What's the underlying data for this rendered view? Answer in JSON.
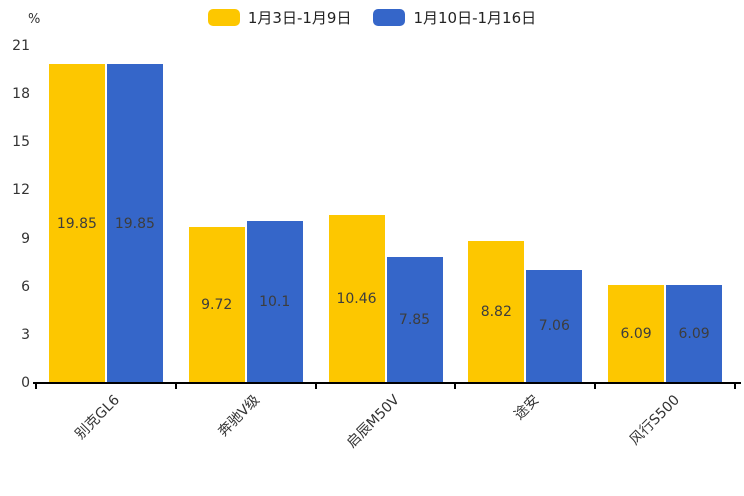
{
  "chart_data": {
    "type": "bar",
    "title": "",
    "xlabel": "",
    "ylabel": "%",
    "categories": [
      "别克GL6",
      "奔驰V级",
      "启辰M50V",
      "途安",
      "风行S500"
    ],
    "series": [
      {
        "name": "1月3日-1月9日",
        "color": "#FDC700",
        "values": [
          19.85,
          9.72,
          10.46,
          8.82,
          6.09
        ]
      },
      {
        "name": "1月10日-1月16日",
        "color": "#3566C9",
        "values": [
          19.85,
          10.1,
          7.85,
          7.06,
          6.09
        ]
      }
    ],
    "ylim": [
      0,
      21
    ],
    "yticks": [
      0,
      3,
      6,
      9,
      12,
      15,
      18,
      21
    ],
    "grid": false,
    "legend_position": "top",
    "value_labels": "inside-center",
    "x_label_rotation_deg": 45,
    "colors": {
      "axis": "#000000",
      "tick_label": "#333333",
      "value_label": "#3d3d3d",
      "background": "#ffffff"
    }
  }
}
